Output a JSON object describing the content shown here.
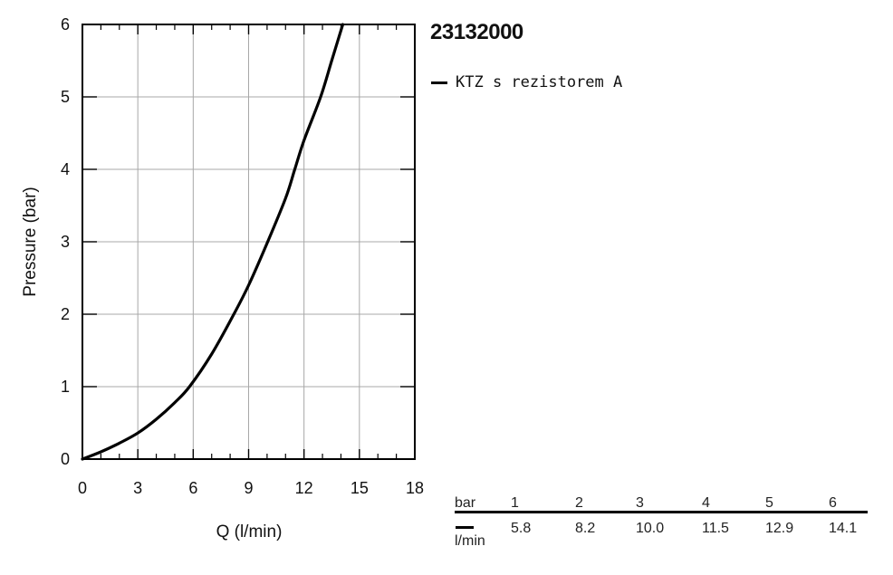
{
  "product_title": "23132000",
  "legend": {
    "label": "KTZ s rezistorem A",
    "color": "#000000"
  },
  "chart_data": {
    "type": "line",
    "xlabel": "Q (l/min)",
    "ylabel": "Pressure (bar)",
    "xlim": [
      0,
      18
    ],
    "ylim": [
      0,
      6
    ],
    "xticks": [
      0,
      3,
      6,
      9,
      12,
      15,
      18
    ],
    "yticks": [
      0,
      1,
      2,
      3,
      4,
      5,
      6
    ],
    "grid": true,
    "series": [
      {
        "name": "KTZ s rezistorem A",
        "color": "#000000",
        "x": [
          0,
          1,
          2,
          3,
          4,
          5,
          5.8,
          7,
          8.2,
          9,
          10,
          11,
          11.5,
          12,
          12.9,
          13.5,
          14.1
        ],
        "y": [
          0,
          0.1,
          0.22,
          0.36,
          0.55,
          0.78,
          1,
          1.45,
          2,
          2.4,
          2.98,
          3.6,
          4,
          4.4,
          5,
          5.5,
          6
        ]
      }
    ]
  },
  "table": {
    "pressure_unit": "bar",
    "flow_unit": "l/min",
    "pressures": [
      "1",
      "2",
      "3",
      "4",
      "5",
      "6"
    ],
    "flows": [
      "5.8",
      "8.2",
      "10.0",
      "11.5",
      "12.9",
      "14.1"
    ]
  }
}
